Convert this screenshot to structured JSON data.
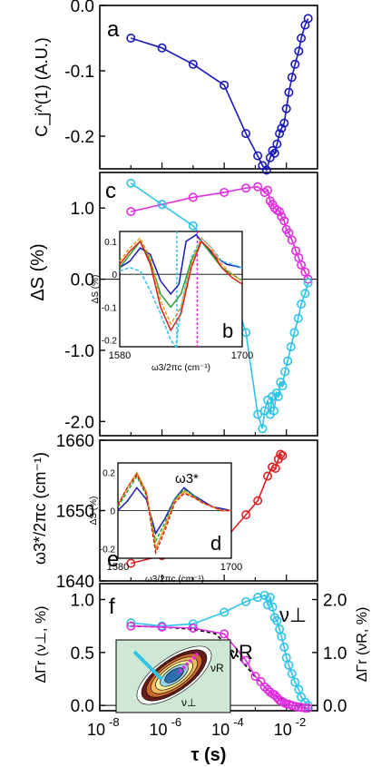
{
  "figure": {
    "panel_labels": [
      "a",
      "c",
      "b",
      "d",
      "e",
      "f"
    ],
    "x_axis_label": "τ (s)",
    "x_tick_labels": [
      "10",
      "-8",
      "10",
      "-6",
      "10",
      "-4",
      "10",
      "-2"
    ]
  },
  "chart_data": [
    {
      "panel": "a",
      "type": "line",
      "ylabel": "C_j^(1) (A.U.)",
      "ylim": [
        -0.25,
        0.0
      ],
      "x_scale": "log",
      "xlim": [
        1e-08,
        0.1
      ],
      "y_ticks": [
        "0.0",
        "-0.1",
        "-0.2"
      ],
      "series": [
        {
          "color": "#1a1ab8",
          "x": [
            1e-07,
            1e-06,
            1e-05,
            0.0001,
            0.0005,
            0.0012,
            0.0017,
            0.0023,
            0.003,
            0.0036,
            0.0042,
            0.005,
            0.006,
            0.007,
            0.0085,
            0.01,
            0.012,
            0.015,
            0.019,
            0.025,
            0.03,
            0.04,
            0.05
          ],
          "y": [
            -0.05,
            -0.065,
            -0.09,
            -0.122,
            -0.196,
            -0.23,
            -0.245,
            -0.252,
            -0.233,
            -0.222,
            -0.226,
            -0.212,
            -0.196,
            -0.188,
            -0.18,
            -0.158,
            -0.133,
            -0.11,
            -0.09,
            -0.07,
            -0.05,
            -0.03,
            -0.02
          ]
        }
      ]
    },
    {
      "panel": "c",
      "type": "line",
      "ylabel": "ΔS (%)",
      "ylim": [
        -2.2,
        1.5
      ],
      "x_scale": "log",
      "y_ticks": [
        "1.0",
        "0.0",
        "-1.0",
        "-2.0"
      ],
      "series": [
        {
          "color": "#e02ee0",
          "x": [
            1e-07,
            1e-06,
            1e-05,
            0.0001,
            0.0005,
            0.0012,
            0.002,
            0.0025,
            0.003,
            0.0036,
            0.0042,
            0.005,
            0.006,
            0.007,
            0.0085,
            0.01,
            0.012,
            0.015,
            0.02,
            0.025,
            0.03,
            0.04,
            0.05
          ],
          "y": [
            0.95,
            1.05,
            1.15,
            1.22,
            1.28,
            1.3,
            1.22,
            1.25,
            1.1,
            1.05,
            1.0,
            0.97,
            0.95,
            0.88,
            0.82,
            0.7,
            0.65,
            0.55,
            0.4,
            0.3,
            0.2,
            0.1,
            0.0
          ]
        },
        {
          "color": "#2ec4e8",
          "x": [
            1e-07,
            1e-06,
            1e-05,
            0.0001,
            0.0005,
            0.0012,
            0.0017,
            0.002,
            0.0025,
            0.003,
            0.0035,
            0.004,
            0.0048,
            0.0055,
            0.0065,
            0.0075,
            0.009,
            0.011,
            0.014,
            0.018,
            0.024,
            0.03,
            0.04,
            0.05
          ],
          "y": [
            1.35,
            1.05,
            0.75,
            0.2,
            -0.75,
            -1.9,
            -2.1,
            -1.85,
            -1.7,
            -1.9,
            -1.65,
            -1.85,
            -1.6,
            -1.65,
            -1.45,
            -1.5,
            -1.3,
            -1.15,
            -0.95,
            -0.75,
            -0.55,
            -0.35,
            -0.2,
            -0.05
          ]
        }
      ],
      "zero_line": true
    },
    {
      "panel": "b",
      "type": "line",
      "inset": true,
      "xlabel": "ω3/2πc (cm⁻¹)",
      "ylabel": "ΔS (%)",
      "xlim": [
        1580,
        1700
      ],
      "ylim": [
        -0.22,
        0.13
      ],
      "x_ticks": [
        "1580",
        "1700"
      ],
      "y_ticks": [
        "0.1",
        "0",
        "-0.1",
        "-0.2"
      ],
      "series": [
        {
          "color": "#1a1ab8",
          "x": [
            1580,
            1590,
            1600,
            1610,
            1620,
            1630,
            1638,
            1645,
            1655,
            1665,
            1675,
            1685,
            1700
          ],
          "y": [
            0.02,
            0.04,
            0.08,
            0.06,
            -0.02,
            -0.06,
            -0.03,
            0.1,
            0.12,
            0.08,
            0.05,
            0.03,
            0.02
          ]
        },
        {
          "color": "#2ec4e8",
          "x": [
            1580,
            1590,
            1600,
            1610,
            1620,
            1630,
            1635,
            1640,
            1650,
            1660,
            1670,
            1680,
            1700
          ],
          "y": [
            0.01,
            0.02,
            0.01,
            -0.05,
            -0.12,
            -0.2,
            -0.22,
            -0.1,
            0.05,
            0.11,
            0.08,
            0.04,
            0.02
          ]
        },
        {
          "color": "#2aa02a",
          "x": [
            1580,
            1590,
            1600,
            1610,
            1620,
            1630,
            1640,
            1650,
            1660,
            1670,
            1680,
            1690,
            1700
          ],
          "y": [
            0.02,
            0.06,
            0.1,
            0.04,
            -0.06,
            -0.1,
            -0.06,
            0.04,
            0.1,
            0.06,
            0.02,
            0.0,
            -0.02
          ]
        },
        {
          "color": "#e8a020",
          "x": [
            1580,
            1590,
            1600,
            1610,
            1620,
            1630,
            1640,
            1650,
            1660,
            1670,
            1680,
            1690,
            1700
          ],
          "y": [
            0.04,
            0.08,
            0.11,
            0.05,
            -0.08,
            -0.15,
            -0.1,
            0.03,
            0.11,
            0.08,
            0.03,
            0.0,
            -0.02
          ]
        },
        {
          "color": "#e02020",
          "x": [
            1580,
            1590,
            1600,
            1610,
            1620,
            1630,
            1640,
            1650,
            1660,
            1670,
            1680,
            1690,
            1700
          ],
          "y": [
            0.03,
            0.07,
            0.1,
            0.03,
            -0.1,
            -0.17,
            -0.12,
            0.02,
            0.1,
            0.07,
            0.02,
            -0.01,
            -0.03
          ]
        }
      ],
      "vertical_markers": [
        {
          "x": 1636,
          "color": "#2ec4e8"
        },
        {
          "x": 1656,
          "color": "#e02ee0"
        }
      ]
    },
    {
      "panel": "e",
      "type": "line",
      "ylabel": "ω3*/2πc (cm⁻¹)",
      "ylim": [
        1640,
        1660
      ],
      "x_scale": "log",
      "y_ticks": [
        "1660",
        "1650",
        "1640"
      ],
      "series": [
        {
          "color": "#e02020",
          "x": [
            1e-07,
            1e-06,
            1e-05,
            0.0001,
            0.0005,
            0.0012,
            0.0025,
            0.0035,
            0.0045,
            0.0055,
            0.0065,
            0.0075
          ],
          "y": [
            1642.5,
            1643.6,
            1644.9,
            1645.8,
            1649.4,
            1651.4,
            1654.9,
            1656.2,
            1656.0,
            1657.3,
            1658.0,
            1657.8
          ]
        }
      ]
    },
    {
      "panel": "d",
      "type": "line",
      "inset": true,
      "xlabel": "ω3/2πc (cm⁻¹)",
      "ylabel": "ΔS (%)",
      "xlim": [
        1580,
        1700
      ],
      "ylim": [
        -0.25,
        0.25
      ],
      "x_ticks": [
        "1580",
        "1700"
      ],
      "y_ticks": [
        "0.2",
        "0",
        "-0.2"
      ],
      "annotation": "ω3*",
      "series": [
        {
          "color": "#1a1ab8",
          "x": [
            1580,
            1590,
            1600,
            1610,
            1620,
            1630,
            1640,
            1650,
            1660,
            1670,
            1680,
            1690,
            1700
          ],
          "y": [
            0.0,
            0.05,
            0.12,
            0.06,
            -0.12,
            -0.04,
            0.06,
            0.12,
            0.08,
            0.05,
            0.02,
            0.01,
            0.0
          ]
        },
        {
          "color": "#2aa02a",
          "x": [
            1580,
            1590,
            1600,
            1610,
            1620,
            1630,
            1640,
            1650,
            1660,
            1670,
            1680,
            1690,
            1700
          ],
          "y": [
            0.02,
            0.1,
            0.18,
            0.08,
            -0.16,
            -0.06,
            0.06,
            0.11,
            0.08,
            0.04,
            0.02,
            0.0,
            0.0
          ]
        },
        {
          "color": "#e8a020",
          "x": [
            1580,
            1590,
            1600,
            1610,
            1620,
            1630,
            1640,
            1650,
            1660,
            1670,
            1680,
            1690,
            1700
          ],
          "y": [
            0.03,
            0.12,
            0.2,
            0.1,
            -0.2,
            -0.08,
            0.05,
            0.1,
            0.07,
            0.04,
            0.02,
            0.0,
            0.0
          ]
        },
        {
          "color": "#e02020",
          "x": [
            1580,
            1590,
            1600,
            1610,
            1620,
            1630,
            1640,
            1650,
            1660,
            1670,
            1680,
            1690,
            1700
          ],
          "y": [
            0.03,
            0.12,
            0.19,
            0.09,
            -0.22,
            -0.1,
            0.04,
            0.09,
            0.07,
            0.04,
            0.02,
            0.0,
            0.0
          ]
        }
      ]
    },
    {
      "panel": "f",
      "type": "line",
      "ylabel": "ΔΓr (ν⊥, %)",
      "ylabel_right": "ΔΓr (νR, %)",
      "ylim": [
        -0.05,
        1.15
      ],
      "ylim_right": [
        -0.1,
        2.3
      ],
      "x_scale": "log",
      "y_ticks": [
        "1.0",
        "0.5",
        "0.0"
      ],
      "y_ticks_right": [
        "2.0",
        "1.0",
        "0.0"
      ],
      "series": [
        {
          "name": "ν⊥",
          "color": "#2ec4e8",
          "x": [
            1e-07,
            1e-06,
            1e-05,
            0.0001,
            0.0005,
            0.0012,
            0.002,
            0.0025,
            0.003,
            0.0036,
            0.0042,
            0.005,
            0.006,
            0.007,
            0.0085,
            0.01,
            0.012,
            0.015,
            0.019,
            0.025,
            0.03,
            0.04,
            0.05
          ],
          "y": [
            0.78,
            0.75,
            0.77,
            0.88,
            0.98,
            1.02,
            1.04,
            0.95,
            1.02,
            0.93,
            0.83,
            0.8,
            0.72,
            0.65,
            0.55,
            0.45,
            0.38,
            0.3,
            0.22,
            0.15,
            0.08,
            0.03,
            0.0
          ]
        },
        {
          "name": "νR",
          "color": "#e02ee0",
          "axis": "right",
          "x": [
            1e-07,
            1e-06,
            1e-05,
            0.0001,
            0.0005,
            0.001,
            0.0015,
            0.002,
            0.0025,
            0.003,
            0.0036,
            0.0042,
            0.005,
            0.006,
            0.007,
            0.0085,
            0.01,
            0.012,
            0.015,
            0.02,
            0.025,
            0.03,
            0.04,
            0.05
          ],
          "y": [
            1.5,
            1.48,
            1.46,
            1.35,
            0.85,
            0.55,
            0.45,
            0.35,
            0.3,
            0.25,
            0.22,
            0.2,
            0.15,
            0.1,
            0.08,
            0.05,
            0.03,
            0.02,
            0.0,
            -0.02,
            -0.03,
            -0.04,
            -0.05,
            -0.05
          ]
        }
      ],
      "fit_curve": {
        "color": "#000000",
        "style": "dashed",
        "x": [
          1e-07,
          1e-06,
          1e-05,
          5e-05,
          0.0001,
          0.0003,
          0.001,
          0.003,
          0.01,
          0.05
        ],
        "y": [
          0.75,
          0.74,
          0.72,
          0.68,
          0.6,
          0.45,
          0.27,
          0.12,
          0.04,
          0.0
        ]
      },
      "zero_line": true
    }
  ]
}
